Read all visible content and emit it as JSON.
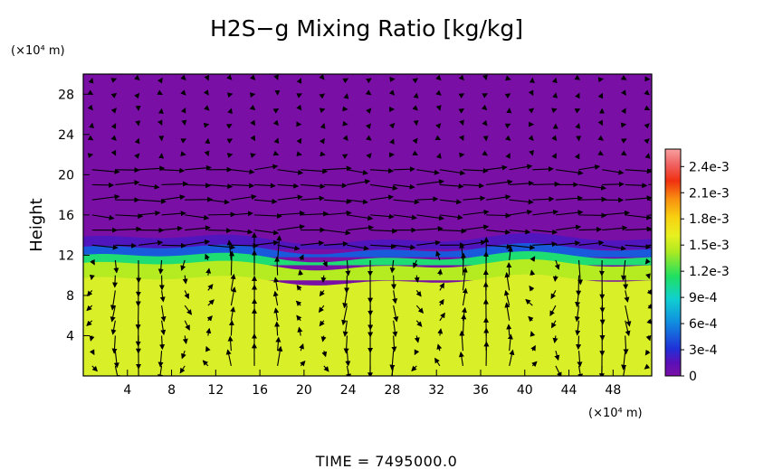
{
  "chart_data": {
    "type": "heatmap",
    "title": "H2S−g Mixing Ratio [kg/kg]",
    "ylabel": "Height",
    "x_unit": "(×10⁴ m)",
    "y_unit": "(×10⁴ m)",
    "xlim": [
      0,
      51.5
    ],
    "ylim": [
      0,
      30
    ],
    "x_ticks": [
      4,
      8,
      12,
      16,
      20,
      24,
      28,
      32,
      36,
      40,
      44,
      48
    ],
    "y_ticks": [
      4,
      8,
      12,
      16,
      20,
      24,
      28
    ],
    "colorbar": {
      "range": [
        0,
        0.0026
      ],
      "labels": [
        "2.4e-3",
        "2.1e-3",
        "1.8e-3",
        "1.5e-3",
        "1.2e-3",
        "9e-4",
        "6e-4",
        "3e-4",
        "0"
      ],
      "label_values": [
        0.0024,
        0.0021,
        0.0018,
        0.0015,
        0.0012,
        0.0009,
        0.0006,
        0.0003,
        0
      ]
    },
    "layers": [
      {
        "y_range": [
          0,
          9.5
        ],
        "value": 0.00162
      },
      {
        "y_range": [
          9.5,
          11
        ],
        "value": 0.00145
      },
      {
        "y_range": [
          11,
          11.8
        ],
        "value": 0.0011
      },
      {
        "y_range": [
          11.8,
          12.6
        ],
        "value": 0.00045
      },
      {
        "y_range": [
          12.6,
          13.6
        ],
        "value": 0.00018
      },
      {
        "y_range": [
          13.6,
          30
        ],
        "value": 0.0
      }
    ],
    "interface_height": 12.5,
    "vectors": "wind velocity field",
    "annotation": "TIME  =  7495000.0"
  },
  "colors": {
    "background": "#7a0fa6",
    "high": "#d8f028",
    "frame": "#000000"
  }
}
